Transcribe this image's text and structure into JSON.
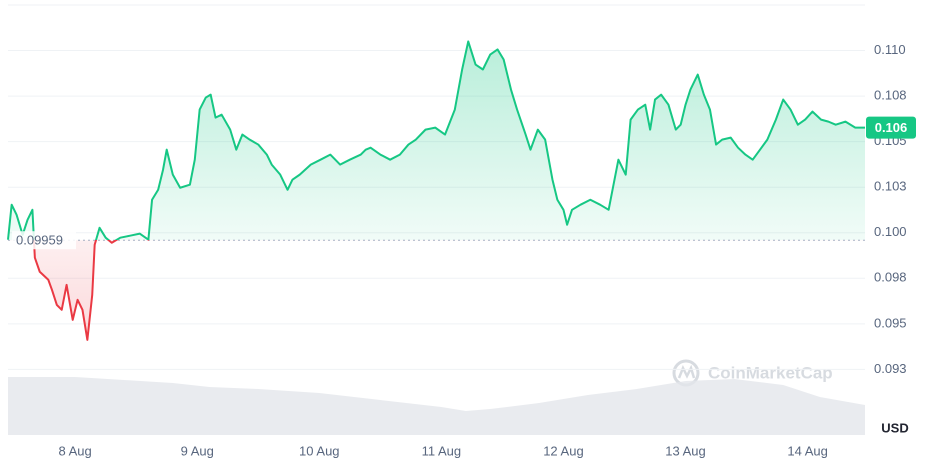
{
  "chart_data": {
    "type": "line",
    "x": [
      7.45,
      7.48,
      7.52,
      7.57,
      7.61,
      7.65,
      7.67,
      7.71,
      7.78,
      7.81,
      7.85,
      7.89,
      7.93,
      7.98,
      8.02,
      8.06,
      8.1,
      8.14,
      8.16,
      8.2,
      8.25,
      8.3,
      8.37,
      8.45,
      8.53,
      8.6,
      8.63,
      8.68,
      8.72,
      8.75,
      8.8,
      8.86,
      8.94,
      8.98,
      9.02,
      9.07,
      9.11,
      9.15,
      9.2,
      9.27,
      9.32,
      9.37,
      9.43,
      9.5,
      9.57,
      9.61,
      9.68,
      9.74,
      9.78,
      9.84,
      9.93,
      10.01,
      10.09,
      10.17,
      10.25,
      10.34,
      10.38,
      10.42,
      10.5,
      10.58,
      10.66,
      10.73,
      10.79,
      10.87,
      10.95,
      11.03,
      11.11,
      11.17,
      11.22,
      11.28,
      11.34,
      11.4,
      11.46,
      11.51,
      11.57,
      11.62,
      11.69,
      11.73,
      11.79,
      11.85,
      11.91,
      11.95,
      12.0,
      12.03,
      12.07,
      12.14,
      12.22,
      12.3,
      12.37,
      12.41,
      12.45,
      12.51,
      12.55,
      12.61,
      12.67,
      12.71,
      12.75,
      12.8,
      12.86,
      12.92,
      12.96,
      13.0,
      13.04,
      13.1,
      13.15,
      13.2,
      13.25,
      13.3,
      13.37,
      13.43,
      13.49,
      13.55,
      13.61,
      13.67,
      13.74,
      13.8,
      13.86,
      13.92,
      13.98,
      14.04,
      14.11,
      14.17,
      14.23,
      14.31,
      14.39,
      14.47
    ],
    "values": [
      0.09962,
      0.10154,
      0.10099,
      0.09989,
      0.10071,
      0.10126,
      0.09863,
      0.09786,
      0.09742,
      0.09687,
      0.09604,
      0.09577,
      0.09714,
      0.09522,
      0.09632,
      0.09577,
      0.09412,
      0.09659,
      0.09934,
      0.10027,
      0.09973,
      0.09945,
      0.09973,
      0.09984,
      0.09995,
      0.09962,
      0.10181,
      0.10236,
      0.10346,
      0.10456,
      0.10319,
      0.10247,
      0.10264,
      0.10401,
      0.10676,
      0.10742,
      0.10758,
      0.10632,
      0.10648,
      0.10566,
      0.10456,
      0.10539,
      0.10511,
      0.10484,
      0.10429,
      0.10374,
      0.10319,
      0.10236,
      0.10291,
      0.10319,
      0.10374,
      0.10401,
      0.10429,
      0.10374,
      0.10401,
      0.10429,
      0.10456,
      0.10467,
      0.10429,
      0.10401,
      0.10429,
      0.10484,
      0.10511,
      0.10566,
      0.10577,
      0.10539,
      0.10676,
      0.10896,
      0.1105,
      0.10923,
      0.10896,
      0.10978,
      0.11006,
      0.10951,
      0.10786,
      0.10676,
      0.10539,
      0.10456,
      0.10566,
      0.10511,
      0.10291,
      0.10181,
      0.10126,
      0.10044,
      0.10126,
      0.10154,
      0.10181,
      0.10154,
      0.10126,
      0.10264,
      0.10401,
      0.10319,
      0.10621,
      0.10676,
      0.10703,
      0.10566,
      0.10731,
      0.10758,
      0.10703,
      0.10566,
      0.10593,
      0.10703,
      0.10786,
      0.10868,
      0.10758,
      0.10676,
      0.10484,
      0.10511,
      0.10522,
      0.10467,
      0.10429,
      0.10401,
      0.10456,
      0.10511,
      0.10621,
      0.10731,
      0.10676,
      0.10593,
      0.10621,
      0.10665,
      0.10621,
      0.1061,
      0.10593,
      0.1061,
      0.10577,
      0.10577
    ],
    "color": "#16c784",
    "below_color": "#ea3943",
    "baseline": 0.09959,
    "current_label": "0.106",
    "xlim": [
      7.45,
      14.47
    ],
    "xticks": [
      {
        "value": 8,
        "label": "8 Aug"
      },
      {
        "value": 9,
        "label": "9 Aug"
      },
      {
        "value": 10,
        "label": "10 Aug"
      },
      {
        "value": 11,
        "label": "11 Aug"
      },
      {
        "value": 12,
        "label": "12 Aug"
      },
      {
        "value": 13,
        "label": "13 Aug"
      },
      {
        "value": 14,
        "label": "14 Aug"
      }
    ],
    "ylim": [
      0.0889,
      0.1125
    ],
    "yticks": [
      {
        "value": 0.0925,
        "label": "0.093"
      },
      {
        "value": 0.095,
        "label": "0.095"
      },
      {
        "value": 0.0975,
        "label": "0.098"
      },
      {
        "value": 0.1,
        "label": "0.100"
      },
      {
        "value": 0.1025,
        "label": "0.103"
      },
      {
        "value": 0.105,
        "label": "0.105"
      },
      {
        "value": 0.1075,
        "label": "0.108"
      },
      {
        "value": 0.11,
        "label": "0.110"
      }
    ],
    "grid": true,
    "y_unit": "USD",
    "watermark": "CoinMarketCap",
    "volume": {
      "x": [
        7.45,
        8.0,
        8.4,
        8.8,
        9.1,
        9.5,
        10.0,
        10.5,
        11.0,
        11.2,
        11.4,
        11.8,
        12.2,
        12.6,
        13.0,
        13.4,
        13.8,
        14.1,
        14.47
      ],
      "values": [
        58,
        58,
        55,
        52,
        48,
        46,
        42,
        35,
        28,
        24,
        26,
        32,
        40,
        46,
        54,
        56,
        50,
        38,
        30
      ],
      "ylim": [
        0,
        70
      ],
      "color": "#e3e6eb"
    }
  }
}
